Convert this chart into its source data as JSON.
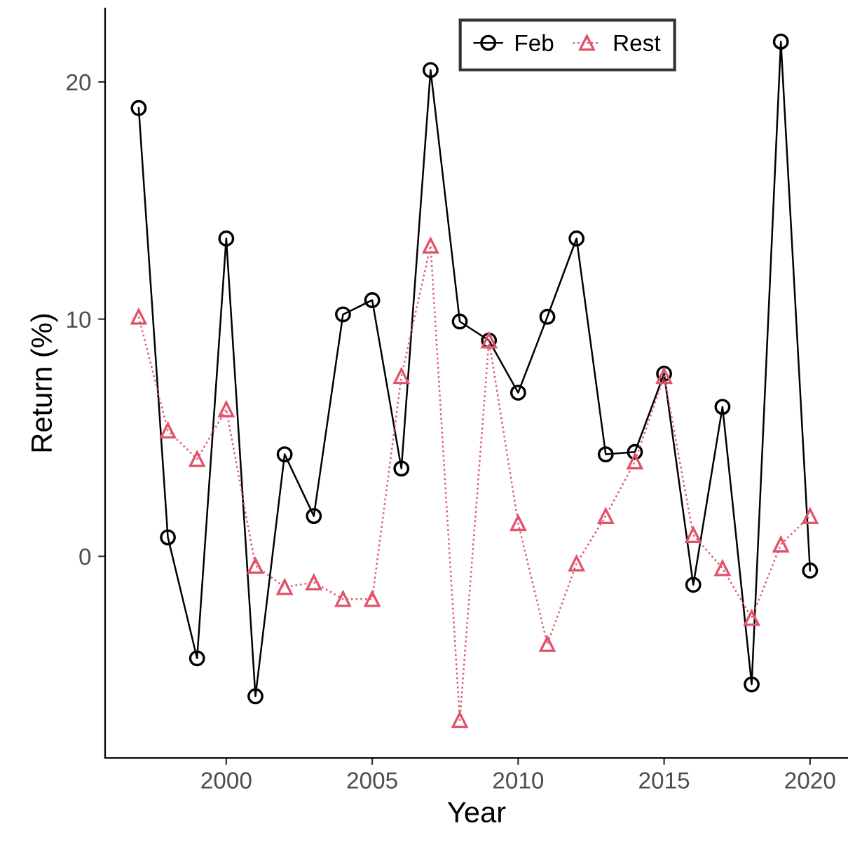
{
  "chart_data": {
    "type": "line",
    "xlabel": "Year",
    "ylabel": "Return (%)",
    "x": [
      1997,
      1998,
      1999,
      2000,
      2001,
      2002,
      2003,
      2004,
      2005,
      2006,
      2007,
      2008,
      2009,
      2010,
      2011,
      2012,
      2013,
      2014,
      2015,
      2016,
      2017,
      2018,
      2019,
      2020
    ],
    "series": [
      {
        "name": "Feb",
        "color": "#000000",
        "marker": "circle",
        "line_style": "solid",
        "values": [
          18.9,
          0.8,
          -4.3,
          13.4,
          -5.9,
          4.3,
          1.7,
          10.2,
          10.8,
          3.7,
          20.5,
          9.9,
          9.1,
          6.9,
          10.1,
          13.4,
          4.3,
          4.4,
          7.7,
          -1.2,
          6.3,
          -5.4,
          21.7,
          -0.6
        ]
      },
      {
        "name": "Rest",
        "color": "#df536b",
        "marker": "triangle",
        "line_style": "dotted",
        "values": [
          10.1,
          5.3,
          4.1,
          6.2,
          -0.4,
          -1.3,
          -1.1,
          -1.8,
          -1.8,
          7.6,
          13.1,
          -6.9,
          9.1,
          1.4,
          -3.7,
          -0.3,
          1.7,
          4.0,
          7.6,
          0.9,
          -0.5,
          -2.6,
          0.5,
          1.7
        ]
      }
    ],
    "xlim": [
      1995.85,
      2021.3
    ],
    "ylim": [
      -8.5,
      23.1
    ],
    "xticks": [
      2000,
      2005,
      2010,
      2015,
      2020
    ],
    "yticks": [
      0,
      10,
      20
    ],
    "grid": false,
    "legend": "top right"
  }
}
